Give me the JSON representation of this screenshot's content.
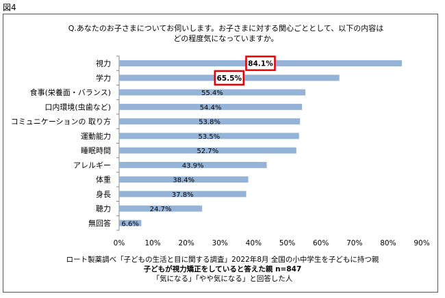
{
  "figure_label": "図4",
  "question": {
    "line1": "Q.あなたのお子さまについてお伺いします。お子さまに対する関心ごととして、以下の内容は",
    "line2": "どの程度気になっていますか。"
  },
  "footer": {
    "line1": "ロート製薬調べ「子どもの生活と目に関する調査」2022年8月 全国の小中学生を子どもに持つ親",
    "line2": "子どもが視力矯正をしていると答えた親 n=847",
    "line3": "「気になる」「やや気になる」と回答した人"
  },
  "colors": {
    "bar": "#95b3d7",
    "highlight": "#e00000"
  },
  "chart_data": {
    "type": "bar",
    "orientation": "horizontal",
    "categories": [
      "視力",
      "学力",
      "食事(栄養面・バランス)",
      "口内環境(虫歯など)",
      "コミュニケーションの 取り方",
      "運動能力",
      "睡眠時間",
      "アレルギー",
      "体重",
      "身長",
      "聴力",
      "無回答"
    ],
    "values": [
      84.1,
      65.5,
      55.4,
      54.4,
      53.8,
      53.5,
      52.7,
      43.9,
      38.4,
      37.8,
      24.7,
      6.6
    ],
    "data_labels": [
      "84.1%",
      "65.5%",
      "55.4%",
      "54.4%",
      "53.8%",
      "53.5%",
      "52.7%",
      "43.9%",
      "38.4%",
      "37.8%",
      "24.7%",
      "6.6%"
    ],
    "highlighted": [
      0,
      1
    ],
    "xlim": [
      0,
      90
    ],
    "xticks": [
      0,
      10,
      20,
      30,
      40,
      50,
      60,
      70,
      80,
      90
    ],
    "xtick_labels": [
      "0%",
      "10%",
      "20%",
      "30%",
      "40%",
      "50%",
      "60%",
      "70%",
      "80%",
      "90%"
    ]
  }
}
